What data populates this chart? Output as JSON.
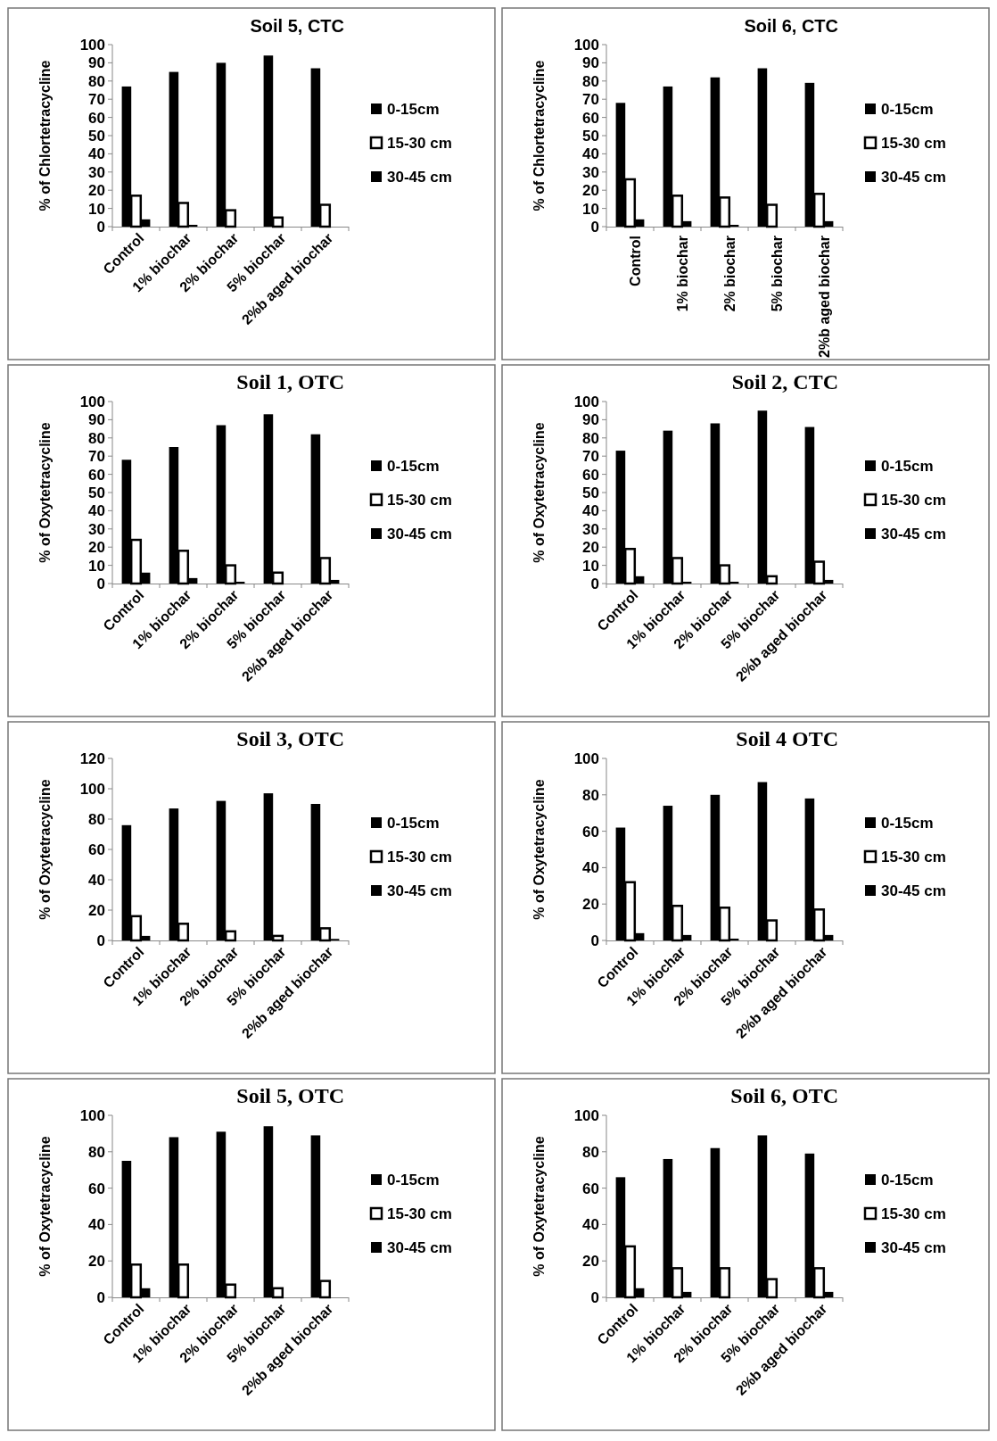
{
  "chart_data": [
    {
      "type": "bar",
      "title": "Soil 5, CTC",
      "ylabel": "% of  Chlortetracycline",
      "categories": [
        "Control",
        "1% biochar",
        "2% biochar",
        "5% biochar",
        "2%b aged biochar"
      ],
      "ylim": [
        0,
        100
      ],
      "yticks": [
        0,
        10,
        20,
        30,
        40,
        50,
        60,
        70,
        80,
        90,
        100
      ],
      "legend": "right",
      "grid": false,
      "series": [
        {
          "name": "0-15cm",
          "color": "#000000",
          "values": [
            77,
            85,
            90,
            94,
            87
          ]
        },
        {
          "name": "15-30 cm",
          "color": "#ffffff",
          "values": [
            17,
            13,
            9,
            5,
            12
          ]
        },
        {
          "name": "30-45 cm",
          "color": "#000000",
          "values": [
            4,
            1,
            0,
            0,
            0
          ]
        }
      ]
    },
    {
      "type": "bar",
      "title": "Soil 6, CTC",
      "ylabel": "% of Chlortetracycline",
      "categories": [
        "Control",
        "1% biochar",
        "2% biochar",
        "5% biochar",
        "2%b aged biochar"
      ],
      "ylim": [
        0,
        100
      ],
      "yticks": [
        0,
        10,
        20,
        30,
        40,
        50,
        60,
        70,
        80,
        90,
        100
      ],
      "legend": "right",
      "grid": false,
      "series": [
        {
          "name": "0-15cm",
          "color": "#000000",
          "values": [
            68,
            77,
            82,
            87,
            79
          ]
        },
        {
          "name": "15-30 cm",
          "color": "#ffffff",
          "values": [
            26,
            17,
            16,
            12,
            18
          ]
        },
        {
          "name": "30-45 cm",
          "color": "#000000",
          "values": [
            4,
            3,
            1,
            0,
            3
          ]
        }
      ]
    },
    {
      "type": "bar",
      "title": "Soil 1, OTC",
      "ylabel": "% of Oxytetracycline",
      "categories": [
        "Control",
        "1% biochar",
        "2% biochar",
        "5% biochar",
        "2%b aged biochar"
      ],
      "ylim": [
        0,
        100
      ],
      "yticks": [
        0,
        10,
        20,
        30,
        40,
        50,
        60,
        70,
        80,
        90,
        100
      ],
      "legend": "right",
      "grid": false,
      "series": [
        {
          "name": "0-15cm",
          "color": "#000000",
          "values": [
            68,
            75,
            87,
            93,
            82
          ]
        },
        {
          "name": "15-30 cm",
          "color": "#ffffff",
          "values": [
            24,
            18,
            10,
            6,
            14
          ]
        },
        {
          "name": "30-45 cm",
          "color": "#000000",
          "values": [
            6,
            3,
            1,
            0,
            2
          ]
        }
      ]
    },
    {
      "type": "bar",
      "title": "Soil 2, CTC",
      "ylabel": "% of Oxytetracycline",
      "categories": [
        "Control",
        "1% biochar",
        "2% biochar",
        "5% biochar",
        "2%b aged biochar"
      ],
      "ylim": [
        0,
        100
      ],
      "yticks": [
        0,
        10,
        20,
        30,
        40,
        50,
        60,
        70,
        80,
        90,
        100
      ],
      "legend": "right",
      "grid": false,
      "series": [
        {
          "name": "0-15cm",
          "color": "#000000",
          "values": [
            73,
            84,
            88,
            95,
            86
          ]
        },
        {
          "name": "15-30 cm",
          "color": "#ffffff",
          "values": [
            19,
            14,
            10,
            4,
            12
          ]
        },
        {
          "name": "30-45 cm",
          "color": "#000000",
          "values": [
            4,
            1,
            1,
            0,
            2
          ]
        }
      ]
    },
    {
      "type": "bar",
      "title": "Soil 3, OTC",
      "ylabel": "% of Oxytetracycline",
      "categories": [
        "Control",
        "1% biochar",
        "2% biochar",
        "5% biochar",
        "2%b aged biochar"
      ],
      "ylim": [
        0,
        120
      ],
      "yticks": [
        0,
        20,
        40,
        60,
        80,
        100,
        120
      ],
      "legend": "right",
      "grid": false,
      "series": [
        {
          "name": "0-15cm",
          "color": "#000000",
          "values": [
            76,
            87,
            92,
            97,
            90
          ]
        },
        {
          "name": "15-30 cm",
          "color": "#ffffff",
          "values": [
            16,
            11,
            6,
            3,
            8
          ]
        },
        {
          "name": "30-45 cm",
          "color": "#000000",
          "values": [
            3,
            0,
            0,
            0,
            1
          ]
        }
      ]
    },
    {
      "type": "bar",
      "title": "Soil 4 OTC",
      "ylabel": "% of Oxytetracycline",
      "categories": [
        "Control",
        "1% biochar",
        "2% biochar",
        "5% biochar",
        "2%b aged biochar"
      ],
      "ylim": [
        0,
        100
      ],
      "yticks": [
        0,
        20,
        40,
        60,
        80,
        100
      ],
      "legend": "right",
      "grid": false,
      "series": [
        {
          "name": "0-15cm",
          "color": "#000000",
          "values": [
            62,
            74,
            80,
            87,
            78
          ]
        },
        {
          "name": "15-30 cm",
          "color": "#ffffff",
          "values": [
            32,
            19,
            18,
            11,
            17
          ]
        },
        {
          "name": "30-45 cm",
          "color": "#000000",
          "values": [
            4,
            3,
            1,
            0,
            3
          ]
        }
      ]
    },
    {
      "type": "bar",
      "title": "Soil 5, OTC",
      "ylabel": "% of Oxytetracycline",
      "categories": [
        "Control",
        "1% biochar",
        "2% biochar",
        "5% biochar",
        "2%b aged biochar"
      ],
      "ylim": [
        0,
        100
      ],
      "yticks": [
        0,
        20,
        40,
        60,
        80,
        100
      ],
      "legend": "right",
      "grid": false,
      "series": [
        {
          "name": "0-15cm",
          "color": "#000000",
          "values": [
            75,
            88,
            91,
            94,
            89
          ]
        },
        {
          "name": "15-30 cm",
          "color": "#ffffff",
          "values": [
            18,
            18,
            7,
            5,
            9
          ]
        },
        {
          "name": "30-45 cm",
          "color": "#000000",
          "values": [
            5,
            0,
            0,
            0,
            0
          ]
        }
      ]
    },
    {
      "type": "bar",
      "title": "Soil 6, OTC",
      "ylabel": "% of Oxytetracycline",
      "categories": [
        "Control",
        "1% biochar",
        "2% biochar",
        "5% biochar",
        "2%b aged biochar"
      ],
      "ylim": [
        0,
        100
      ],
      "yticks": [
        0,
        20,
        40,
        60,
        80,
        100
      ],
      "legend": "right",
      "grid": false,
      "series": [
        {
          "name": "0-15cm",
          "color": "#000000",
          "values": [
            66,
            76,
            82,
            89,
            79
          ]
        },
        {
          "name": "15-30 cm",
          "color": "#ffffff",
          "values": [
            28,
            16,
            16,
            10,
            16
          ]
        },
        {
          "name": "30-45 cm",
          "color": "#000000",
          "values": [
            5,
            3,
            0,
            0,
            3
          ]
        }
      ]
    }
  ]
}
